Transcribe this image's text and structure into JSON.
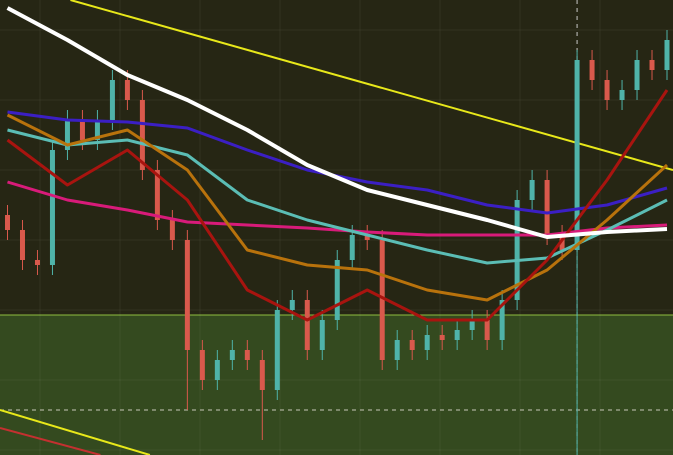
{
  "chart_data": {
    "type": "candlestick",
    "ylim": [
      0,
      455
    ],
    "xlim": [
      -0.5,
      44.4
    ],
    "up_color": "#4fb3a9",
    "down_color": "#d9594c",
    "upper_zone_color": "#262614",
    "lower_zone_color": "#344a1f",
    "zone_split": 140,
    "level_line": 45,
    "cursor_x": 38,
    "grid": true,
    "open": [
      240,
      225,
      195,
      190,
      305,
      335,
      315,
      335,
      375,
      355,
      285,
      235,
      215,
      105,
      75,
      95,
      105,
      95,
      65,
      145,
      155,
      105,
      135,
      195,
      220,
      215,
      95,
      115,
      105,
      120,
      115,
      125,
      135,
      115,
      155,
      255,
      275,
      220,
      205,
      395,
      375,
      355,
      365,
      395,
      385
    ],
    "high": [
      250,
      235,
      205,
      315,
      345,
      345,
      345,
      385,
      385,
      365,
      295,
      245,
      225,
      115,
      105,
      115,
      115,
      105,
      155,
      165,
      165,
      145,
      205,
      230,
      230,
      225,
      125,
      125,
      130,
      130,
      135,
      145,
      145,
      165,
      265,
      285,
      285,
      230,
      405,
      405,
      385,
      375,
      405,
      405,
      425
    ],
    "low": [
      215,
      185,
      180,
      180,
      295,
      305,
      305,
      325,
      345,
      275,
      225,
      205,
      45,
      65,
      65,
      85,
      85,
      15,
      55,
      135,
      95,
      95,
      125,
      185,
      205,
      85,
      85,
      95,
      95,
      105,
      105,
      115,
      105,
      105,
      145,
      245,
      210,
      195,
      0,
      365,
      345,
      345,
      355,
      375,
      375
    ],
    "close": [
      225,
      195,
      190,
      305,
      335,
      315,
      335,
      375,
      355,
      285,
      235,
      215,
      105,
      75,
      95,
      105,
      95,
      65,
      145,
      155,
      105,
      135,
      195,
      220,
      215,
      95,
      115,
      105,
      120,
      115,
      125,
      135,
      115,
      155,
      255,
      275,
      220,
      205,
      395,
      375,
      355,
      365,
      395,
      385,
      415
    ],
    "ma_x": [
      0,
      4,
      8,
      12,
      16,
      20,
      24,
      28,
      32,
      36,
      40,
      44
    ],
    "series": [
      {
        "color": "#d81b7a",
        "values": [
          273,
          255,
          245,
          233,
          230,
          227,
          223,
          220,
          220,
          220,
          227,
          230
        ]
      },
      {
        "color": "#5bbdb5",
        "values": [
          325,
          310,
          315,
          300,
          255,
          235,
          220,
          205,
          192,
          197,
          225,
          255
        ]
      },
      {
        "color": "#3b1fc4",
        "values": [
          343,
          335,
          333,
          327,
          305,
          285,
          273,
          265,
          250,
          242,
          250,
          267
        ]
      },
      {
        "color": "#b8720c",
        "values": [
          340,
          310,
          325,
          285,
          205,
          190,
          185,
          165,
          155,
          185,
          235,
          290
        ]
      },
      {
        "color": "#a8140f",
        "values": [
          315,
          270,
          305,
          255,
          165,
          135,
          165,
          135,
          135,
          195,
          275,
          365
        ]
      },
      {
        "color": "#ffffff",
        "values": [
          447,
          415,
          380,
          355,
          325,
          290,
          265,
          250,
          235,
          218,
          223,
          226
        ]
      }
    ],
    "trendlines": [
      {
        "color": "#e8e81a",
        "x": [
          4.2,
          44.4
        ],
        "values": [
          455,
          285
        ]
      },
      {
        "color": "#e8e81a",
        "x": [
          -0.5,
          9.5
        ],
        "values": [
          45,
          0
        ]
      },
      {
        "color": "#c43030",
        "x": [
          -0.5,
          6.2
        ],
        "values": [
          27,
          0
        ]
      }
    ]
  }
}
